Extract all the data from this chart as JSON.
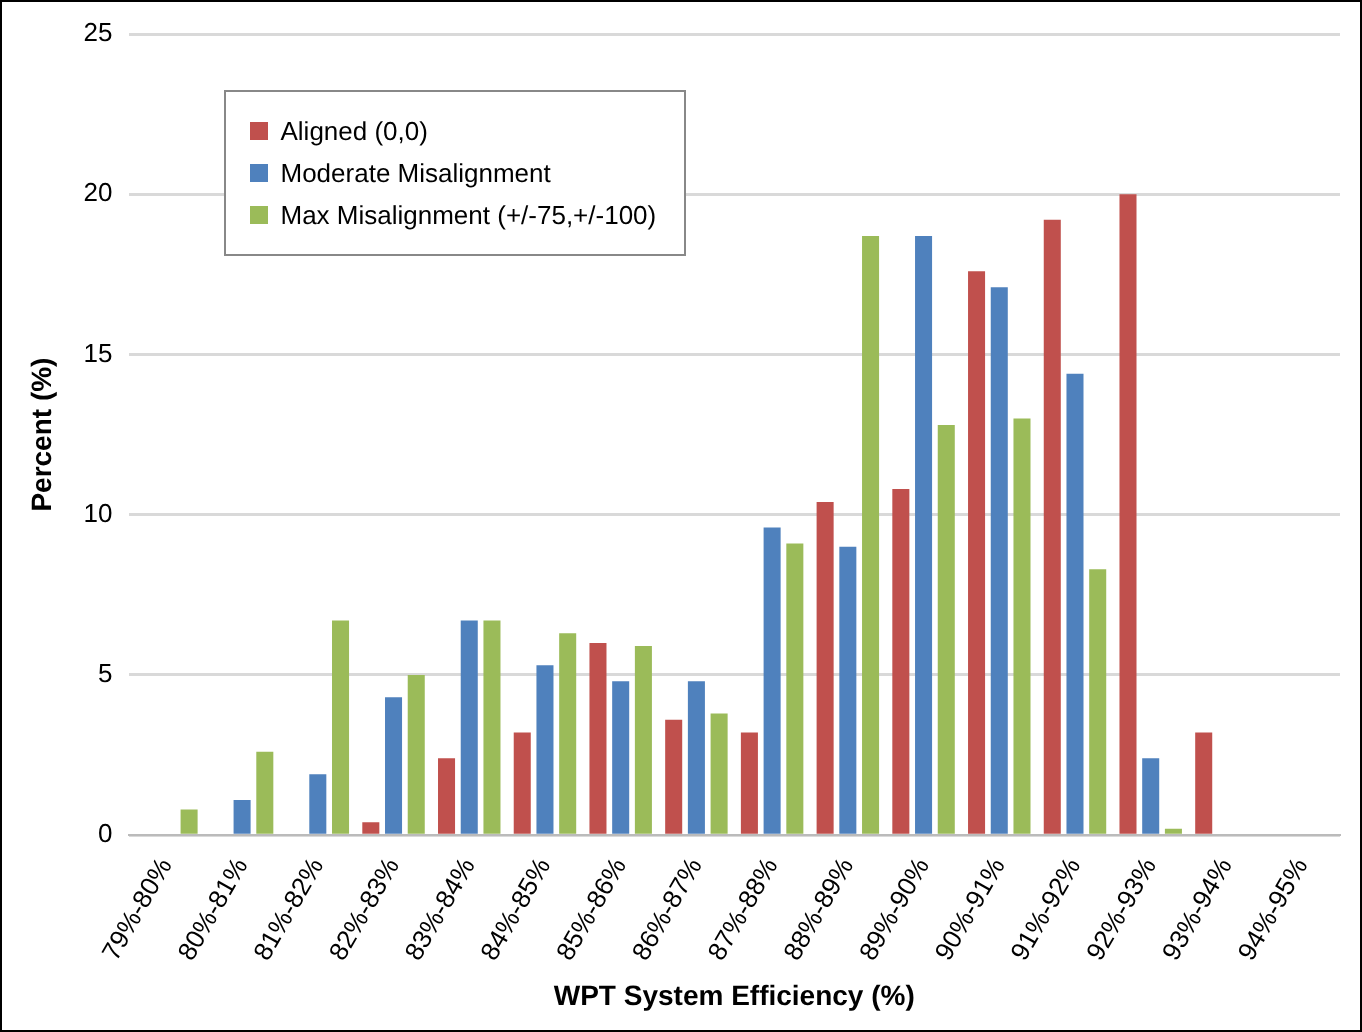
{
  "chart_data": {
    "type": "bar",
    "xlabel": "WPT System Efficiency (%)",
    "ylabel": "Percent (%)",
    "categories": [
      "79%-80%",
      "80%-81%",
      "81%-82%",
      "82%-83%",
      "83%-84%",
      "84%-85%",
      "85%-86%",
      "86%-87%",
      "87%-88%",
      "88%-89%",
      "89%-90%",
      "90%-91%",
      "91%-92%",
      "92%-93%",
      "93%-94%",
      "94%-95%"
    ],
    "series": [
      {
        "name": "Aligned (0,0)",
        "color": "#c0504d",
        "values": [
          0,
          0,
          0,
          0.4,
          2.4,
          3.2,
          6.0,
          3.6,
          3.2,
          10.4,
          10.8,
          17.6,
          19.2,
          20.0,
          3.2,
          0
        ]
      },
      {
        "name": "Moderate Misalignment",
        "color": "#4f81bd",
        "values": [
          0,
          1.1,
          1.9,
          4.3,
          6.7,
          5.3,
          4.8,
          4.8,
          9.6,
          9.0,
          18.7,
          17.1,
          14.4,
          2.4,
          0,
          0
        ]
      },
      {
        "name": "Max Misalignment (+/-75,+/-100)",
        "color": "#9bbb59",
        "values": [
          0.8,
          2.6,
          6.7,
          5.0,
          6.7,
          6.3,
          5.9,
          3.8,
          9.1,
          18.7,
          12.8,
          13.0,
          8.3,
          0.2,
          0,
          0
        ]
      }
    ],
    "ylim": [
      0,
      25
    ],
    "yticks": [
      0,
      5,
      10,
      15,
      20,
      25
    ],
    "grid": "y",
    "legend": "top left"
  }
}
